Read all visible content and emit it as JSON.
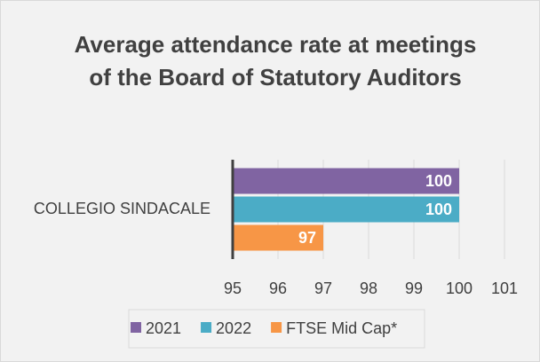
{
  "chart_data": {
    "type": "bar",
    "orientation": "horizontal",
    "title": "Average attendance rate at meetings of the Board of Statutory Auditors",
    "categories": [
      "COLLEGIO SINDACALE"
    ],
    "series": [
      {
        "name": "2021",
        "color": "#8064a2",
        "values": [
          100
        ]
      },
      {
        "name": "2022",
        "color": "#4bacc6",
        "values": [
          100
        ]
      },
      {
        "name": "FTSE Mid Cap*",
        "color": "#f79646",
        "values": [
          97
        ]
      }
    ],
    "xlim": [
      95,
      101
    ],
    "xticks": [
      95,
      96,
      97,
      98,
      99,
      100,
      101
    ],
    "grid": true,
    "legend": "bottom"
  }
}
